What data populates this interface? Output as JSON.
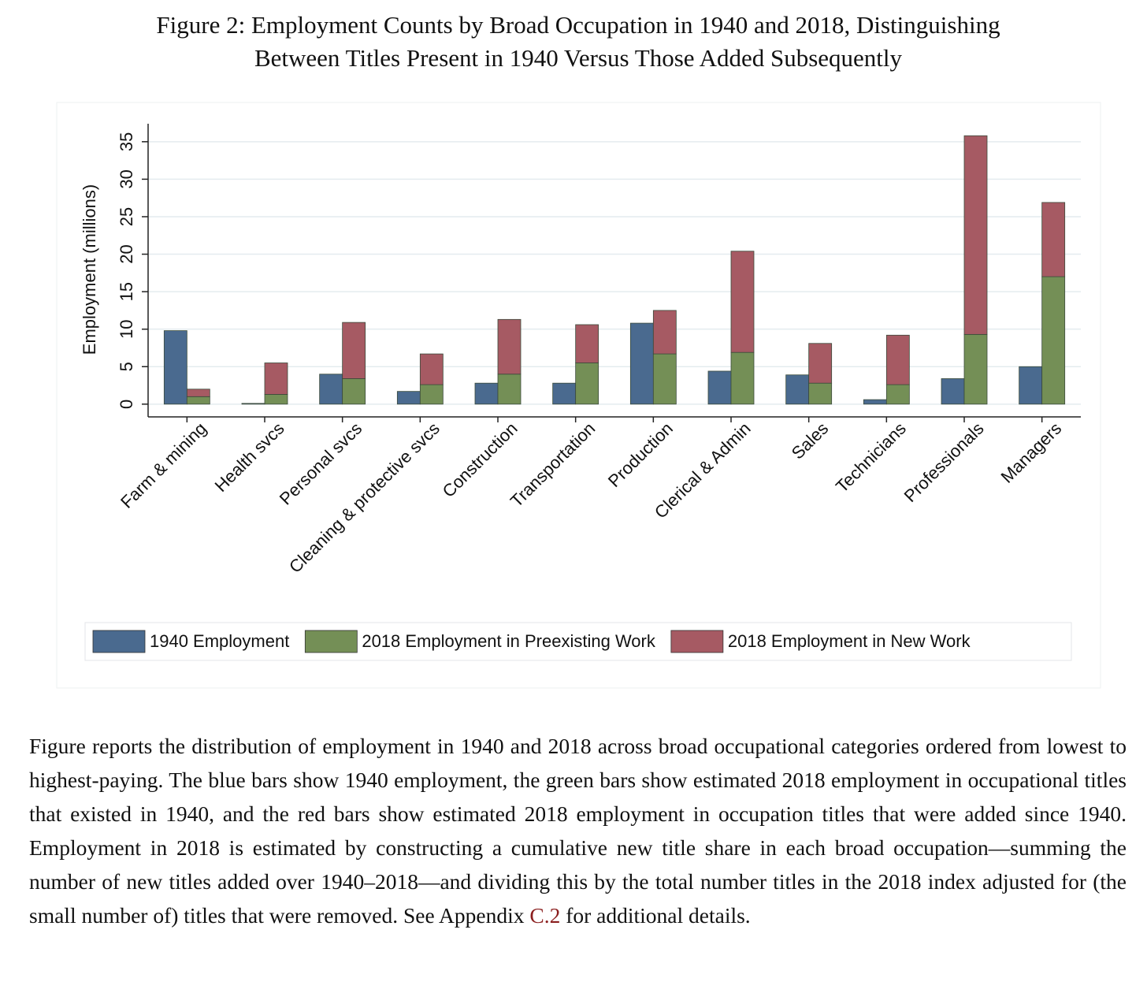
{
  "chart_data": {
    "type": "bar",
    "title": [
      "Figure 2: Employment Counts by Broad Occupation in 1940 and 2018, Distinguishing",
      "Between Titles Present in 1940 Versus Those Added Subsequently"
    ],
    "y_label": "Employment (millions)",
    "categories": [
      "Farm & mining",
      "Health svcs",
      "Personal svcs",
      "Cleaning & protective svcs",
      "Construction",
      "Transportation",
      "Production",
      "Clerical & Admin",
      "Sales",
      "Technicians",
      "Professionals",
      "Managers"
    ],
    "series": [
      {
        "name": "1940 Employment",
        "color": "#4a6a8f",
        "values": [
          9.8,
          0.1,
          4.0,
          1.7,
          2.8,
          2.8,
          10.8,
          4.4,
          3.9,
          0.6,
          3.4,
          5.0
        ]
      },
      {
        "name": "2018 Employment in Preexisting Work",
        "color": "#748f56",
        "values": [
          1.0,
          1.3,
          3.4,
          2.6,
          4.0,
          5.5,
          6.7,
          6.9,
          2.8,
          2.6,
          9.3,
          17.0
        ]
      },
      {
        "name": "2018 Employment in New Work",
        "color": "#a65a63",
        "values": [
          1.0,
          4.2,
          7.5,
          4.1,
          7.3,
          5.1,
          5.8,
          13.5,
          5.3,
          6.6,
          26.5,
          9.9
        ]
      }
    ],
    "bar_groups": [
      [
        0
      ],
      [
        1,
        2
      ]
    ],
    "ylim": [
      -1.7,
      37.4
    ],
    "yticks": [
      0,
      5,
      10,
      15,
      20,
      25,
      30,
      35
    ],
    "grid": true,
    "legend": "bottom"
  },
  "caption": {
    "before": "Figure reports the distribution of employment in 1940 and 2018 across broad occupational categories ordered from lowest to highest-paying. The blue bars show 1940 employment, the green bars show estimated 2018 employment in occupational titles that existed in 1940, and the red bars show estimated 2018 employment in occupation titles that were added since 1940. Employment in 2018 is estimated by constructing a cumulative new title share in each broad occupation—summing the number of new titles added over 1940–2018—and dividing this by the total number titles in the 2018 index adjusted for (the small number of) titles that were removed.  See Appendix",
    "link": "C.2",
    "after": "for additional details."
  }
}
